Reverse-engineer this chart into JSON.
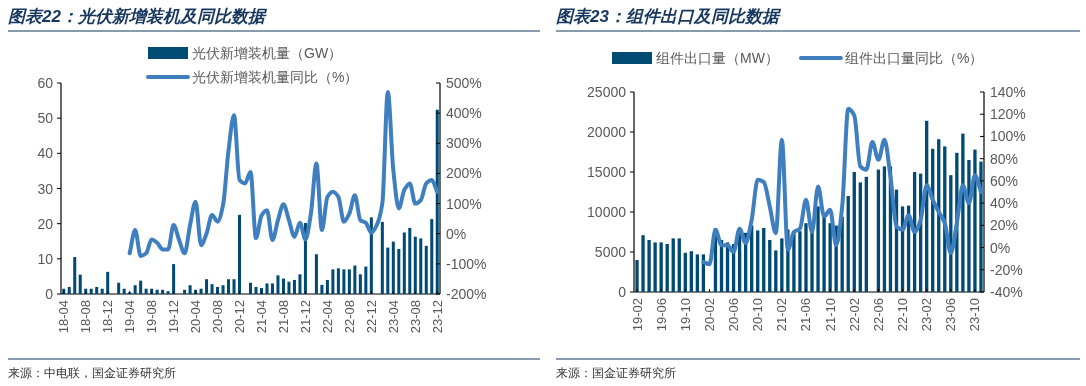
{
  "chart_data": [
    {
      "type": "bar",
      "title": "图表22：光伏新增装机及同比数据",
      "categories": [
        "18-04",
        null,
        null,
        null,
        "18-08",
        null,
        null,
        null,
        "18-12",
        null,
        null,
        null,
        "19-04",
        null,
        null,
        null,
        "19-08",
        null,
        null,
        null,
        "19-12",
        null,
        null,
        null,
        "20-04",
        null,
        null,
        null,
        "20-08",
        null,
        null,
        null,
        "20-12",
        null,
        null,
        null,
        "21-04",
        null,
        null,
        null,
        "21-08",
        null,
        null,
        null,
        "21-12",
        null,
        null,
        null,
        "22-04",
        null,
        null,
        null,
        "22-08",
        null,
        null,
        null,
        "22-12",
        null,
        null,
        null,
        "23-04",
        null,
        null,
        null,
        "23-08",
        null,
        null,
        null,
        "23-12"
      ],
      "series": [
        {
          "name": "光伏新增装机量（GW）",
          "color": "#004a73",
          "values": [
            1.5,
            2,
            10.5,
            5.5,
            1.5,
            1.5,
            2,
            1.5,
            6.3,
            null,
            3.2,
            1.5,
            0.5,
            2.5,
            3.8,
            1.5,
            1.5,
            1.2,
            1.2,
            0.8,
            8.5,
            null,
            1.2,
            2.5,
            1.2,
            1.5,
            4.2,
            2.8,
            2,
            2.5,
            4.2,
            4.2,
            22.5,
            null,
            3.2,
            2,
            1.7,
            3,
            3,
            5.3,
            4.4,
            3.5,
            4,
            5.6,
            20.2,
            null,
            11.3,
            2.6,
            4,
            7,
            7.3,
            7,
            7,
            8.1,
            5.6,
            7.8,
            21.8,
            null,
            20.5,
            13.2,
            14.9,
            12.8,
            17.5,
            18.8,
            16.3,
            15.8,
            13.7,
            21.3,
            52.4
          ]
        },
        {
          "name": "光伏新增装机量同比（%）",
          "type": "line",
          "axis": "y2",
          "color": "#3f7fc0",
          "values": [
            null,
            null,
            null,
            null,
            null,
            null,
            null,
            null,
            null,
            null,
            null,
            null,
            -65,
            12,
            -74,
            -65,
            -19,
            -30,
            -52,
            -52,
            29,
            -21,
            -65,
            29,
            106,
            -38,
            1,
            62,
            40,
            95,
            277,
            393,
            178,
            167,
            205,
            -15,
            60,
            78,
            -21,
            45,
            98,
            45,
            -10,
            36,
            -19,
            67,
            233,
            12,
            122,
            139,
            122,
            40,
            67,
            128,
            45,
            36,
            3,
            29,
            100,
            470,
            211,
            84,
            145,
            167,
            100,
            111,
            167,
            178,
            139
          ]
        }
      ],
      "ylim": [
        0,
        60
      ],
      "yticks": [
        0,
        10,
        20,
        30,
        40,
        50,
        60
      ],
      "y2lim": [
        -200,
        500
      ],
      "y2ticks": [
        {
          "value": -200,
          "label": "-200%"
        },
        {
          "value": -100,
          "label": "-100%"
        },
        {
          "value": 0,
          "label": "0%"
        },
        {
          "value": 100,
          "label": "100%"
        },
        {
          "value": 200,
          "label": "200%"
        },
        {
          "value": 300,
          "label": "300%"
        },
        {
          "value": 400,
          "label": "400%"
        },
        {
          "value": 500,
          "label": "500%"
        }
      ],
      "legend": "top",
      "annotations": [
        "来源：中电联，国金证券研究所"
      ]
    },
    {
      "type": "bar",
      "title": "图表23：组件出口及同比数据",
      "categories": [
        "19-02",
        null,
        null,
        null,
        "19-06",
        null,
        null,
        null,
        "19-10",
        null,
        null,
        null,
        "20-02",
        null,
        null,
        null,
        "20-06",
        null,
        null,
        null,
        "20-10",
        null,
        null,
        null,
        "21-02",
        null,
        null,
        null,
        "21-06",
        null,
        null,
        null,
        "21-10",
        null,
        null,
        null,
        "22-02",
        null,
        null,
        null,
        "22-06",
        null,
        null,
        null,
        "22-10",
        null,
        null,
        null,
        "23-02",
        null,
        null,
        null,
        "23-06",
        null,
        null,
        null,
        "23-10",
        null
      ],
      "series": [
        {
          "name": "组件出口量（MW）",
          "color": "#004a73",
          "values": [
            4000,
            7100,
            6500,
            6200,
            6200,
            6000,
            6700,
            6700,
            4900,
            5100,
            4700,
            4700,
            null,
            8000,
            6500,
            6200,
            6000,
            7500,
            7400,
            8300,
            7700,
            8000,
            6500,
            5200,
            6700,
            7800,
            7600,
            7600,
            8600,
            7800,
            10700,
            9800,
            8600,
            8300,
            9400,
            12000,
            15000,
            13700,
            14400,
            null,
            15300,
            15700,
            15700,
            12800,
            10700,
            10800,
            15000,
            14800,
            21400,
            17900,
            19100,
            18200,
            14600,
            17400,
            19800,
            16500,
            17800,
            16300
          ]
        },
        {
          "name": "组件出口量同比（%）",
          "type": "line",
          "axis": "y2",
          "color": "#3f7fc0",
          "values": [
            null,
            null,
            null,
            null,
            null,
            null,
            null,
            null,
            null,
            null,
            null,
            -13,
            -15,
            16,
            2,
            2,
            -4,
            17,
            4,
            25,
            61,
            59,
            37,
            13,
            97,
            -2,
            14,
            17,
            43,
            14,
            55,
            28,
            34,
            2,
            37,
            125,
            119,
            73,
            70,
            95,
            79,
            97,
            64,
            19,
            16,
            29,
            14,
            25,
            56,
            43,
            32,
            22,
            -5,
            22,
            56,
            40,
            65,
            50
          ]
        }
      ],
      "ylim": [
        0,
        25000
      ],
      "yticks": [
        0,
        5000,
        10000,
        15000,
        20000,
        25000
      ],
      "y2lim": [
        -40,
        140
      ],
      "y2ticks": [
        {
          "value": -40,
          "label": "-40%"
        },
        {
          "value": -20,
          "label": "-20%"
        },
        {
          "value": 0,
          "label": "0%"
        },
        {
          "value": 20,
          "label": "20%"
        },
        {
          "value": 40,
          "label": "40%"
        },
        {
          "value": 60,
          "label": "60%"
        },
        {
          "value": 80,
          "label": "80%"
        },
        {
          "value": 100,
          "label": "100%"
        },
        {
          "value": 120,
          "label": "120%"
        },
        {
          "value": 140,
          "label": "140%"
        }
      ],
      "legend": "top",
      "annotations": [
        "来源：国金证券研究所"
      ]
    }
  ]
}
